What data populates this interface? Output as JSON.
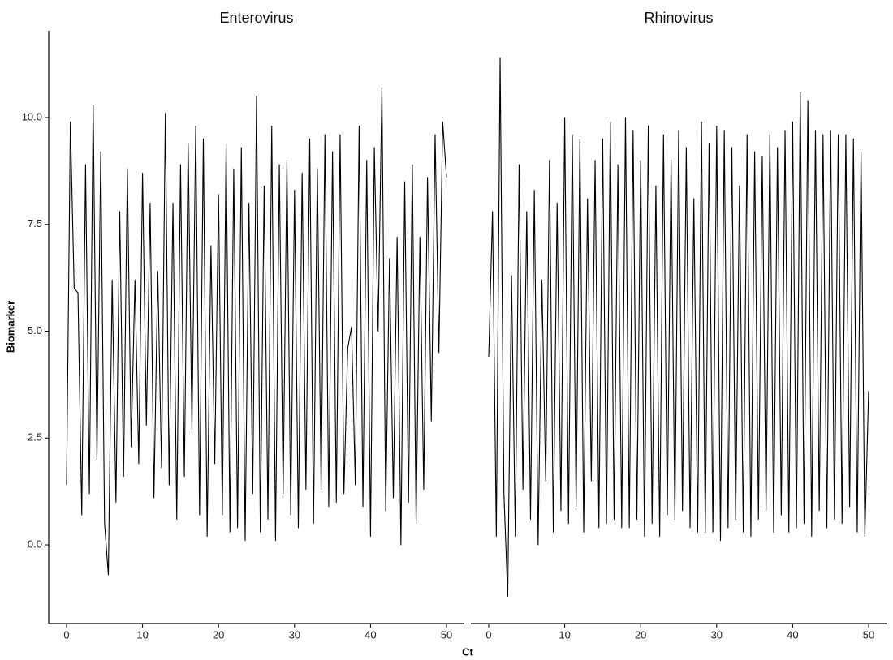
{
  "x_label": "Ct",
  "y_label": "Biomarker",
  "chart_data": [
    {
      "type": "line",
      "title": "Enterovirus",
      "color": "#000000",
      "x": [
        0,
        0.5,
        1,
        1.5,
        2,
        2.5,
        3,
        3.5,
        4,
        4.5,
        5,
        5.5,
        6,
        6.5,
        7,
        7.5,
        8,
        8.5,
        9,
        9.5,
        10,
        10.5,
        11,
        11.5,
        12,
        12.5,
        13,
        13.5,
        14,
        14.5,
        15,
        15.5,
        16,
        16.5,
        17,
        17.5,
        18,
        18.5,
        19,
        19.5,
        20,
        20.5,
        21,
        21.5,
        22,
        22.5,
        23,
        23.5,
        24,
        24.5,
        25,
        25.5,
        26,
        26.5,
        27,
        27.5,
        28,
        28.5,
        29,
        29.5,
        30,
        30.5,
        31,
        31.5,
        32,
        32.5,
        33,
        33.5,
        34,
        34.5,
        35,
        35.5,
        36,
        36.5,
        37,
        37.5,
        38,
        38.5,
        39,
        39.5,
        40,
        40.5,
        41,
        41.5,
        42,
        42.5,
        43,
        43.5,
        44,
        44.5,
        45,
        45.5,
        46,
        46.5,
        47,
        47.5,
        48,
        48.5,
        49,
        49.5,
        50
      ],
      "values": [
        1.4,
        9.9,
        6.0,
        5.9,
        0.7,
        8.9,
        1.2,
        10.3,
        2.0,
        9.2,
        0.5,
        -0.7,
        6.2,
        1.0,
        7.8,
        1.6,
        8.8,
        2.3,
        6.2,
        1.9,
        8.7,
        2.8,
        8.0,
        1.1,
        6.4,
        1.8,
        10.1,
        1.4,
        8.0,
        0.6,
        8.9,
        1.6,
        9.4,
        2.7,
        9.8,
        0.7,
        9.5,
        0.2,
        7.0,
        1.9,
        8.2,
        0.7,
        9.4,
        0.3,
        8.8,
        0.4,
        9.3,
        0.1,
        8.0,
        1.2,
        10.5,
        0.3,
        8.4,
        0.6,
        9.8,
        0.1,
        8.9,
        1.2,
        9.0,
        0.7,
        8.3,
        0.4,
        8.7,
        1.3,
        9.5,
        0.5,
        8.8,
        1.3,
        9.6,
        0.9,
        9.2,
        1.0,
        9.6,
        1.2,
        4.6,
        5.1,
        1.4,
        9.8,
        0.9,
        9.0,
        0.2,
        9.3,
        5.0,
        10.7,
        0.8,
        6.7,
        1.1,
        7.2,
        0.0,
        8.5,
        1.0,
        8.9,
        0.5,
        7.2,
        1.3,
        8.6,
        2.9,
        9.6,
        4.5,
        9.9,
        8.6
      ],
      "xlim": [
        -2.35,
        52.35
      ],
      "ylim": [
        -1.84,
        12.03
      ],
      "xticks": [
        0,
        10,
        20,
        30,
        40,
        50
      ],
      "yticks": [
        {
          "value": 0,
          "label": "0.0"
        },
        2.5,
        {
          "value": 5,
          "label": "5.0"
        },
        7.5,
        {
          "value": 10,
          "label": "10.0"
        }
      ]
    },
    {
      "type": "line",
      "title": "Rhinovirus",
      "color": "#000000",
      "x": [
        0,
        0.5,
        1,
        1.5,
        2,
        2.5,
        3,
        3.5,
        4,
        4.5,
        5,
        5.5,
        6,
        6.5,
        7,
        7.5,
        8,
        8.5,
        9,
        9.5,
        10,
        10.5,
        11,
        11.5,
        12,
        12.5,
        13,
        13.5,
        14,
        14.5,
        15,
        15.5,
        16,
        16.5,
        17,
        17.5,
        18,
        18.5,
        19,
        19.5,
        20,
        20.5,
        21,
        21.5,
        22,
        22.5,
        23,
        23.5,
        24,
        24.5,
        25,
        25.5,
        26,
        26.5,
        27,
        27.5,
        28,
        28.5,
        29,
        29.5,
        30,
        30.5,
        31,
        31.5,
        32,
        32.5,
        33,
        33.5,
        34,
        34.5,
        35,
        35.5,
        36,
        36.5,
        37,
        37.5,
        38,
        38.5,
        39,
        39.5,
        40,
        40.5,
        41,
        41.5,
        42,
        42.5,
        43,
        43.5,
        44,
        44.5,
        45,
        45.5,
        46,
        46.5,
        47,
        47.5,
        48,
        48.5,
        49,
        49.5,
        50
      ],
      "values": [
        4.4,
        7.8,
        0.2,
        11.4,
        1.2,
        -1.2,
        6.3,
        0.2,
        8.9,
        1.3,
        7.8,
        0.6,
        8.3,
        0.0,
        6.2,
        1.5,
        9.0,
        0.3,
        8.0,
        0.8,
        10.0,
        0.5,
        9.6,
        0.9,
        9.5,
        0.3,
        8.1,
        1.5,
        9.0,
        0.4,
        9.5,
        0.5,
        9.9,
        0.6,
        8.9,
        0.4,
        10.0,
        0.4,
        9.7,
        0.6,
        9.0,
        0.2,
        9.8,
        0.5,
        8.4,
        0.2,
        9.6,
        0.7,
        9.0,
        0.6,
        9.7,
        0.8,
        9.3,
        0.4,
        8.1,
        0.3,
        9.9,
        0.3,
        9.4,
        0.3,
        9.8,
        0.1,
        9.7,
        0.4,
        9.3,
        0.6,
        8.4,
        0.3,
        9.6,
        0.2,
        9.2,
        0.6,
        9.1,
        0.8,
        9.6,
        0.3,
        9.3,
        0.7,
        9.7,
        0.3,
        9.9,
        0.4,
        10.6,
        0.5,
        10.4,
        0.2,
        9.7,
        0.8,
        9.6,
        0.4,
        9.7,
        0.6,
        9.6,
        0.5,
        9.6,
        0.9,
        9.5,
        0.3,
        9.2,
        0.2,
        3.6
      ],
      "xlim": [
        -2.35,
        52.35
      ],
      "ylim": [
        -1.84,
        12.03
      ],
      "xticks": [
        0,
        10,
        20,
        30,
        40,
        50
      ]
    }
  ]
}
